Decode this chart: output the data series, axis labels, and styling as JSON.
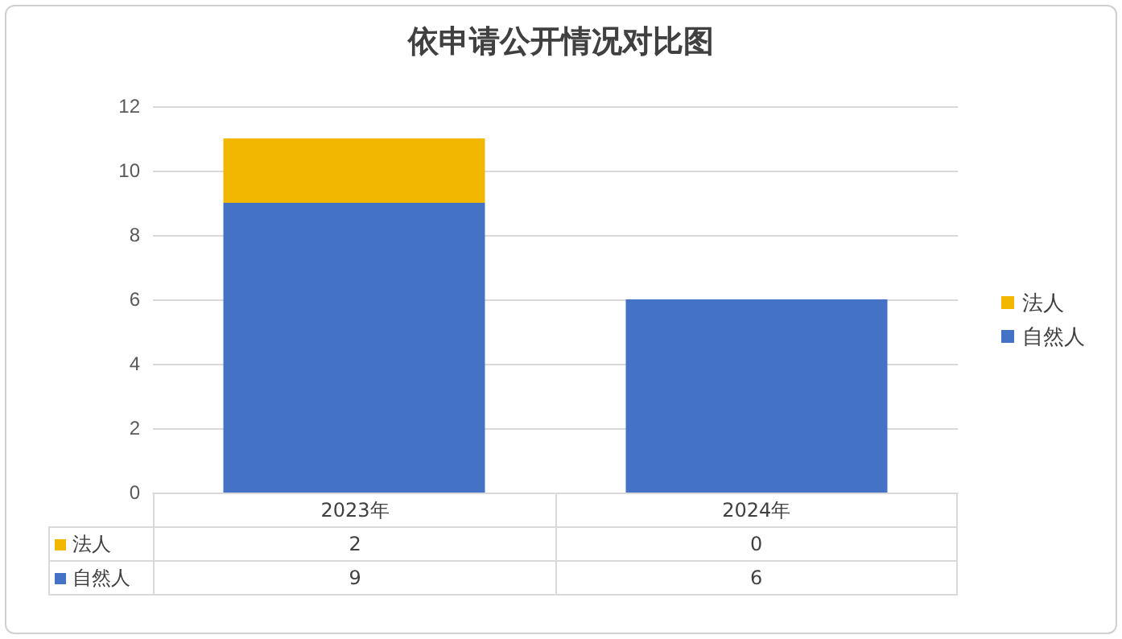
{
  "chart_data": {
    "type": "bar",
    "title": "依申请公开情况对比图",
    "categories": [
      "2023年",
      "2024年"
    ],
    "stacked": true,
    "series": [
      {
        "name": "自然人",
        "color": "#4472c4",
        "values": [
          9,
          6
        ]
      },
      {
        "name": "法人",
        "color": "#f2b700",
        "values": [
          2,
          0
        ]
      }
    ],
    "ylim": [
      0,
      12
    ],
    "yticks": [
      0,
      2,
      4,
      6,
      8,
      10,
      12
    ],
    "grid": "y",
    "legend": "right",
    "data_labels": true
  }
}
